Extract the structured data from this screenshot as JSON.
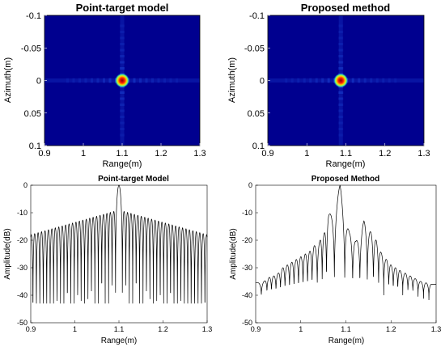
{
  "colors": {
    "jet_background": "#00008f",
    "sidelobe_cyan": "#2f6fff",
    "peak_red": "#c00000",
    "peak_yellow": "#ffd400",
    "line": "#000000"
  },
  "chart_data": [
    {
      "type": "heatmap",
      "title": "Point-target model",
      "xlabel": "Range(m)",
      "ylabel": "Azimuth(m)",
      "xlim": [
        0.9,
        1.3
      ],
      "ylim": [
        -0.1,
        0.1
      ],
      "y_reversed": true,
      "xticks": [
        "0.9",
        "1",
        "1.1",
        "1.2",
        "1.3"
      ],
      "yticks": [
        "-0.1",
        "-0.05",
        "0",
        "0.05",
        "0.1"
      ],
      "xtick_values": [
        0.9,
        1.0,
        1.1,
        1.2,
        1.3
      ],
      "ytick_values": [
        -0.1,
        -0.05,
        0,
        0.05,
        0.1
      ],
      "colormap": "jet",
      "peak": {
        "x": 1.1,
        "y": 0.0
      }
    },
    {
      "type": "heatmap",
      "title": "Proposed method",
      "xlabel": "Range(m)",
      "ylabel": "Azimuth(m)",
      "xlim": [
        0.9,
        1.3
      ],
      "ylim": [
        -0.1,
        0.1
      ],
      "y_reversed": true,
      "xticks": [
        "0.9",
        "1",
        "1.1",
        "1.2",
        "1.3"
      ],
      "yticks": [
        "-0.1",
        "-0.05",
        "0",
        "0.05",
        "0.1"
      ],
      "xtick_values": [
        0.9,
        1.0,
        1.1,
        1.2,
        1.3
      ],
      "ytick_values": [
        -0.1,
        -0.05,
        0,
        0.05,
        0.1
      ],
      "colormap": "jet",
      "peak": {
        "x": 1.087,
        "y": 0.0
      }
    },
    {
      "type": "line",
      "title": "Point-target Model",
      "xlabel": "Range(m)",
      "ylabel": "Amplitude(dB)",
      "xlim": [
        0.9,
        1.3
      ],
      "ylim": [
        -50,
        0
      ],
      "xticks": [
        "0.9",
        "1",
        "1.1",
        "1.2",
        "1.3"
      ],
      "yticks": [
        "0",
        "-10",
        "-20",
        "-30",
        "-40",
        "-50"
      ],
      "xtick_values": [
        0.9,
        1.0,
        1.1,
        1.2,
        1.3
      ],
      "ytick_values": [
        0,
        -10,
        -20,
        -30,
        -40,
        -50
      ],
      "model": "sinc",
      "center": 1.1,
      "lobe_period": 0.0078,
      "peak_db": 0,
      "envelope_at_edges_db": -18,
      "null_floor_db": -43
    },
    {
      "type": "line",
      "title": "Proposed Method",
      "xlabel": "Range(m)",
      "ylabel": "Amplitude(dB)",
      "xlim": [
        0.9,
        1.3
      ],
      "ylim": [
        -50,
        0
      ],
      "xticks": [
        "0.9",
        "1",
        "1.1",
        "1.2",
        "1.3"
      ],
      "yticks": [
        "0",
        "-10",
        "-20",
        "-30",
        "-40",
        "-50"
      ],
      "xtick_values": [
        0.9,
        1.0,
        1.1,
        1.2,
        1.3
      ],
      "ytick_values": [
        0,
        -10,
        -20,
        -30,
        -40,
        -50
      ],
      "model": "lobes",
      "lobe_peaks": [
        [
          0.905,
          -35.5
        ],
        [
          0.92,
          -34.8
        ],
        [
          0.93,
          -33.5
        ],
        [
          0.94,
          -33
        ],
        [
          0.95,
          -32
        ],
        [
          0.96,
          -30
        ],
        [
          0.97,
          -29
        ],
        [
          0.98,
          -28
        ],
        [
          0.99,
          -27
        ],
        [
          1.0,
          -26
        ],
        [
          1.01,
          -25
        ],
        [
          1.02,
          -24
        ],
        [
          1.03,
          -22
        ],
        [
          1.043,
          -20
        ],
        [
          1.052,
          -17.5
        ],
        [
          1.062,
          -11
        ],
        [
          1.087,
          0
        ],
        [
          1.108,
          -17.5
        ],
        [
          1.122,
          -20.5
        ],
        [
          1.14,
          -13
        ],
        [
          1.155,
          -17
        ],
        [
          1.167,
          -20
        ],
        [
          1.178,
          -24.5
        ],
        [
          1.19,
          -27
        ],
        [
          1.2,
          -29
        ],
        [
          1.21,
          -30
        ],
        [
          1.22,
          -31
        ],
        [
          1.232,
          -32
        ],
        [
          1.243,
          -33
        ],
        [
          1.254,
          -34
        ],
        [
          1.266,
          -35
        ],
        [
          1.278,
          -35.5
        ],
        [
          1.29,
          -36
        ]
      ],
      "null_floor_db": -40
    }
  ]
}
